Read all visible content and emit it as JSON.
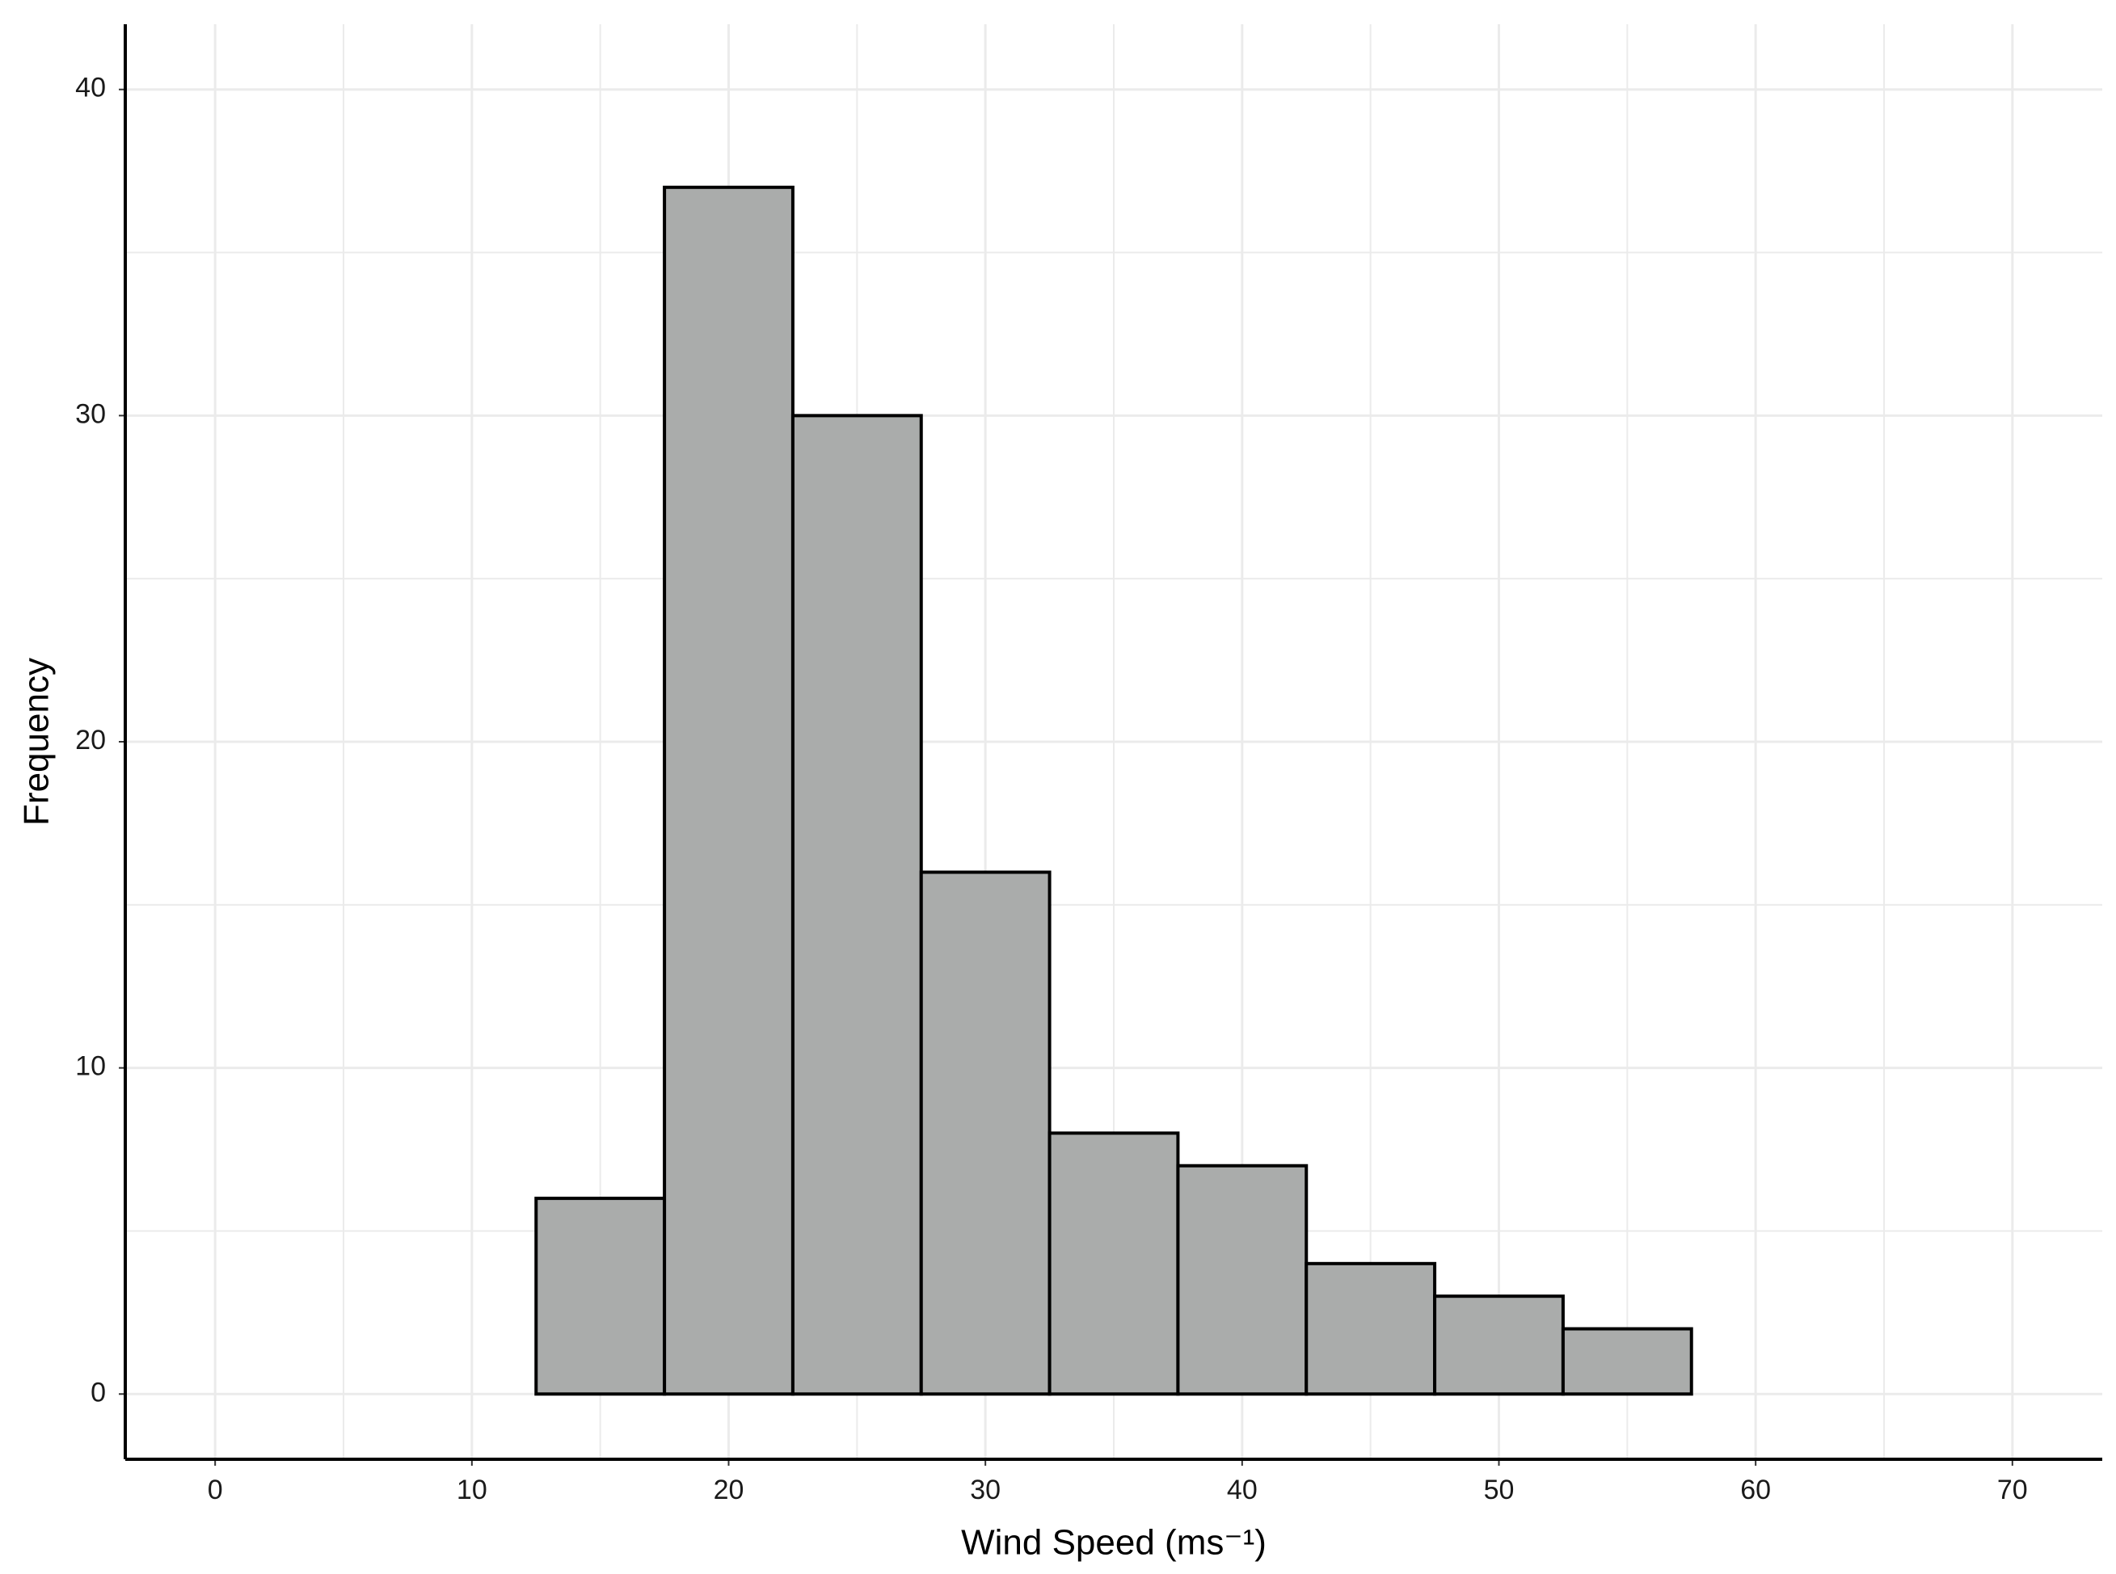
{
  "chart_data": {
    "type": "histogram",
    "x_label": "Wind Speed (ms⁻¹)",
    "y_label": "Frequency",
    "bins": [
      2.5,
      7.5,
      12.5,
      17.5,
      22.5,
      27.5,
      32.5,
      37.5,
      42.5,
      47.5,
      52.5,
      57.5,
      62.5,
      67.5
    ],
    "values": [
      0,
      0,
      6,
      37,
      30,
      16,
      8,
      7,
      4,
      3,
      2,
      0,
      0
    ],
    "color": "#aaacab",
    "edge_color": "#000000",
    "xlim": [
      -3.5,
      73.5
    ],
    "xticks": [
      0,
      10,
      20,
      30,
      40,
      50,
      60,
      70
    ],
    "ylim": [
      -2,
      42
    ],
    "yticks": [
      0,
      10,
      20,
      30,
      40
    ],
    "grid": true,
    "minor_grid": true
  }
}
